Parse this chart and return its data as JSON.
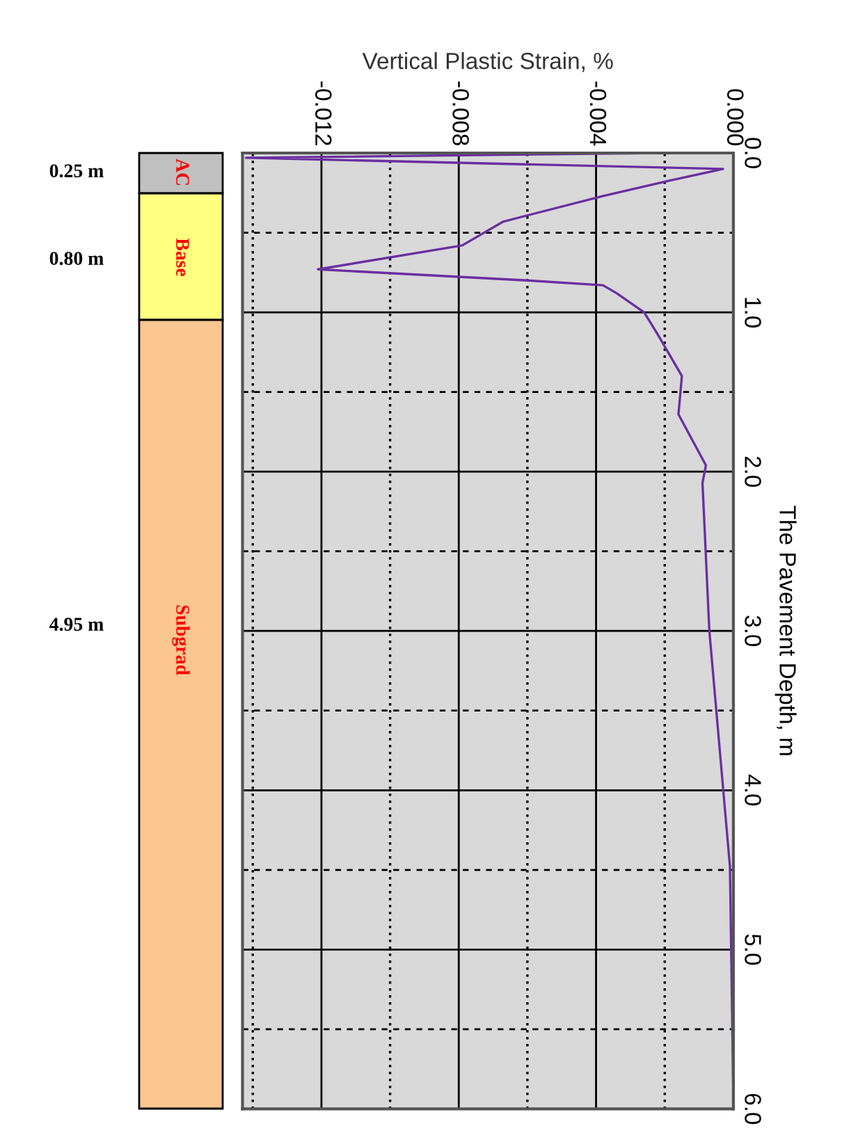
{
  "chart_data": {
    "type": "line",
    "xlabel": "Vertical Plastic Strain, %",
    "ylabel": "The Pavement Depth, m",
    "series": [
      {
        "color": "#6a2fa0",
        "values": [
          0.0,
          0.03,
          0.1,
          0.175,
          0.27,
          0.43,
          0.58,
          0.73,
          0.8,
          0.83,
          0.88,
          1.0,
          1.14,
          1.4,
          1.64,
          1.96,
          2.07,
          3.0,
          4.48,
          5.93
        ],
        "x": [
          -0.0022,
          -0.0142,
          -0.0003,
          -0.0019,
          -0.0038,
          -0.0067,
          -0.0079,
          -0.0121,
          -0.006,
          -0.0038,
          -0.0034,
          -0.0026,
          -0.0022,
          -0.0015,
          -0.0016,
          -0.0008,
          -0.0009,
          -0.0007,
          -0.0001,
          0.0
        ]
      }
    ],
    "xlim": [
      -0.0143,
      0.0
    ],
    "xticks": [
      {
        "value": -0.014,
        "label": null
      },
      {
        "value": -0.012,
        "label": "-0.012"
      },
      {
        "value": -0.01,
        "label": null
      },
      {
        "value": -0.008,
        "label": "-0.008"
      },
      {
        "value": -0.006,
        "label": null
      },
      {
        "value": -0.004,
        "label": "-0.004"
      },
      {
        "value": -0.002,
        "label": null
      },
      {
        "value": 0.0,
        "label": "0.000"
      }
    ],
    "ylim": [
      6.0,
      0.0
    ],
    "yticks": [
      {
        "value": 0.0,
        "label": "0.0"
      },
      {
        "value": 0.5,
        "label": null
      },
      {
        "value": 1.0,
        "label": "1.0"
      },
      {
        "value": 1.5,
        "label": null
      },
      {
        "value": 2.0,
        "label": "2.0"
      },
      {
        "value": 2.5,
        "label": null
      },
      {
        "value": 3.0,
        "label": "3.0"
      },
      {
        "value": 3.5,
        "label": null
      },
      {
        "value": 4.0,
        "label": "4.0"
      },
      {
        "value": 4.5,
        "label": null
      },
      {
        "value": 5.0,
        "label": "5.0"
      },
      {
        "value": 5.5,
        "label": null
      },
      {
        "value": 6.0,
        "label": "6.0"
      }
    ],
    "grid": true,
    "annotations": [
      "0.25 m",
      "AC",
      "0.80 m",
      "Base",
      "4.95 m",
      "Subgrad"
    ]
  }
}
